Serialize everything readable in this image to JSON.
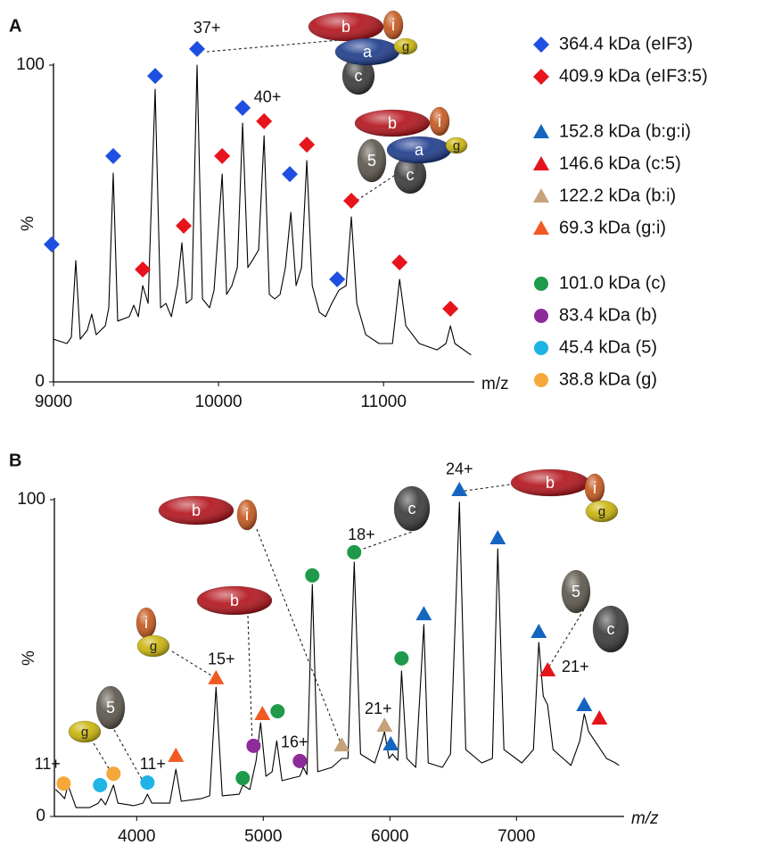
{
  "chart_data": [
    {
      "type": "line",
      "panel": "A",
      "ylabel": "%",
      "xlabel": "m/z",
      "xlabel_italic": false,
      "xlim": [
        9000,
        11550
      ],
      "ylim": [
        0,
        100
      ],
      "xticks": [
        9000,
        10000,
        11000
      ],
      "yticks": [
        0,
        100
      ],
      "color": "#000000",
      "x": [
        9000,
        9081,
        9108,
        9135,
        9162,
        9205,
        9232,
        9259,
        9314,
        9335,
        9362,
        9389,
        9459,
        9486,
        9514,
        9541,
        9573,
        9616,
        9649,
        9681,
        9714,
        9751,
        9778,
        9805,
        9838,
        9870,
        9903,
        9946,
        9973,
        10022,
        10049,
        10081,
        10114,
        10146,
        10178,
        10211,
        10243,
        10276,
        10308,
        10341,
        10373,
        10405,
        10438,
        10470,
        10503,
        10535,
        10568,
        10611,
        10649,
        10686,
        10730,
        10773,
        10805,
        10838,
        10892,
        10973,
        11054,
        11097,
        11135,
        11216,
        11324,
        11378,
        11405,
        11432,
        11530
      ],
      "values": [
        13.5,
        12.1,
        14.1,
        38.3,
        13.5,
        16.3,
        21.4,
        14.9,
        17.7,
        23.4,
        65.9,
        19.2,
        20.6,
        24.2,
        20.6,
        30.4,
        24.8,
        92.4,
        23.4,
        24.8,
        20.6,
        30.4,
        43.9,
        24.8,
        26.2,
        100,
        26.2,
        23.4,
        29.0,
        65.6,
        27.6,
        30.4,
        36.1,
        81.7,
        36.1,
        38.9,
        41.7,
        77.7,
        27.6,
        26.2,
        27.6,
        36.1,
        53.5,
        30.4,
        36.1,
        69.9,
        30.4,
        22.0,
        20.6,
        24.8,
        29.0,
        30.4,
        52.1,
        24.8,
        14.9,
        12.1,
        12.1,
        32.4,
        17.7,
        12.1,
        10.1,
        12.1,
        17.7,
        12.1,
        8.5
      ],
      "series": [
        {
          "name": "364.4 kDa (eIF3)",
          "color": "#1f4fe0",
          "marker": "diamond",
          "x": [
            8989,
            9362,
            9616,
            9870,
            10146,
            10432,
            10719
          ],
          "values": [
            43.4,
            71.3,
            96.6,
            105.1,
            86.5,
            65.6,
            32.4
          ]
        },
        {
          "name": "409.9 kDa (eIF3:5)",
          "color": "#e8141b",
          "marker": "diamond",
          "x": [
            9541,
            9789,
            10022,
            10276,
            10535,
            10805,
            11097,
            11405
          ],
          "values": [
            35.5,
            49.3,
            71.3,
            82.3,
            74.9,
            57.2,
            37.7,
            23.1
          ]
        }
      ],
      "annotations": [
        {
          "text": "37+",
          "x": 9930,
          "y": 111.5
        },
        {
          "text": "40+",
          "x": 10297,
          "y": 89.6
        }
      ],
      "cartoons": [
        [
          "c",
          "b",
          "i",
          "a",
          "g"
        ],
        [
          "c",
          "5",
          "b",
          "i",
          "a",
          "g"
        ]
      ]
    },
    {
      "type": "line",
      "panel": "B",
      "ylabel": "%",
      "xlabel": "m/z",
      "xlabel_italic": true,
      "xlim": [
        3350,
        7850
      ],
      "ylim": [
        0,
        100
      ],
      "xticks": [
        4000,
        5000,
        6000,
        7000
      ],
      "yticks": [
        0,
        100
      ],
      "color": "#000000",
      "x": [
        3359,
        3401,
        3430,
        3458,
        3521,
        3627,
        3697,
        3718,
        3754,
        3817,
        3852,
        3979,
        4049,
        4085,
        4120,
        4261,
        4310,
        4352,
        4507,
        4577,
        4627,
        4676,
        4810,
        4838,
        4894,
        4944,
        4979,
        5021,
        5070,
        5106,
        5148,
        5289,
        5317,
        5345,
        5387,
        5430,
        5542,
        5620,
        5669,
        5718,
        5768,
        5880,
        5937,
        5958,
        5993,
        6021,
        6063,
        6092,
        6134,
        6204,
        6268,
        6303,
        6415,
        6479,
        6549,
        6599,
        6725,
        6810,
        6852,
        6901,
        7042,
        7134,
        7176,
        7211,
        7246,
        7289,
        7430,
        7500,
        7535,
        7570,
        7641,
        7711,
        7782,
        7810
      ],
      "values": [
        8.5,
        7.0,
        5.6,
        9.9,
        2.8,
        2.8,
        4.2,
        5.6,
        3.7,
        9.9,
        4.2,
        3.4,
        4.2,
        7.0,
        4.2,
        4.2,
        14.9,
        4.8,
        5.6,
        6.5,
        40.8,
        6.5,
        7.0,
        9.9,
        8.5,
        17.7,
        29.6,
        12.7,
        14.1,
        23.9,
        11.3,
        12.7,
        15.5,
        13.2,
        73.2,
        14.1,
        15.5,
        18.3,
        18.3,
        80.3,
        19.7,
        16.9,
        23.9,
        26.8,
        18.3,
        19.7,
        17.7,
        45.9,
        18.3,
        15.5,
        60.6,
        16.9,
        15.5,
        19.7,
        99.2,
        21.1,
        16.9,
        18.3,
        84.5,
        21.1,
        16.9,
        21.1,
        54.9,
        38.0,
        35.2,
        21.1,
        16.1,
        23.9,
        32.4,
        26.8,
        22.5,
        18.3,
        16.9,
        16.1
      ],
      "series": [
        {
          "name": "152.8 kDa (b:g:i)",
          "color": "#1565c0",
          "marker": "triangle",
          "x": [
            6549,
            6852,
            6268,
            7176,
            7535,
            6007
          ],
          "values": [
            103.1,
            87.9,
            63.9,
            58.3,
            35.2,
            22.8
          ]
        },
        {
          "name": "146.6 kDa (c:5)",
          "color": "#e3141b",
          "marker": "triangle",
          "x": [
            7246,
            7655
          ],
          "values": [
            46.2,
            31.0
          ]
        },
        {
          "name": "122.2 kDa (b:i)",
          "color": "#c6a27c",
          "marker": "triangle",
          "x": [
            5620,
            5958
          ],
          "values": [
            22.5,
            28.7
          ]
        },
        {
          "name": "69.3 kDa (g:i)",
          "color": "#f05a22",
          "marker": "triangle",
          "x": [
            4627,
            4993,
            4310
          ],
          "values": [
            43.7,
            32.4,
            19.2
          ]
        },
        {
          "name": "101.0 kDa (c)",
          "color": "#1e9a4a",
          "marker": "circle",
          "x": [
            5718,
            5387,
            6092,
            5113,
            4838
          ],
          "values": [
            83.4,
            76.1,
            49.9,
            33.2,
            12.1
          ]
        },
        {
          "name": "83.4 kDa (b)",
          "color": "#8e2a9a",
          "marker": "circle",
          "x": [
            4923,
            5289
          ],
          "values": [
            22.3,
            17.5
          ]
        },
        {
          "name": "45.4 kDa (5)",
          "color": "#1eb4e6",
          "marker": "circle",
          "x": [
            4085,
            3711
          ],
          "values": [
            10.7,
            9.9
          ]
        },
        {
          "name": "38.8 kDa (g)",
          "color": "#f5a83a",
          "marker": "circle",
          "x": [
            3817,
            3423
          ],
          "values": [
            13.5,
            10.4
          ]
        }
      ],
      "annotations": [
        {
          "text": "24+",
          "x": 6549,
          "y": 109.3
        },
        {
          "text": "18+",
          "x": 5775,
          "y": 88.7
        },
        {
          "text": "15+",
          "x": 4669,
          "y": 49.3
        },
        {
          "text": "21+",
          "x": 5908,
          "y": 33.8
        },
        {
          "text": "16+",
          "x": 5246,
          "y": 23.1
        },
        {
          "text": "11+",
          "x": 3296,
          "y": 16.3
        },
        {
          "text": "11+",
          "x": 4127,
          "y": 16.3
        },
        {
          "text": "21+",
          "x": 7465,
          "y": 47.0
        }
      ],
      "cartoons": [
        [
          "b",
          "i",
          "g"
        ],
        [
          "c"
        ],
        [
          "b",
          "i"
        ],
        [
          "b"
        ],
        [
          "i",
          "g"
        ],
        [
          "5",
          "c"
        ],
        [
          "5"
        ],
        [
          "g"
        ]
      ]
    }
  ]
}
